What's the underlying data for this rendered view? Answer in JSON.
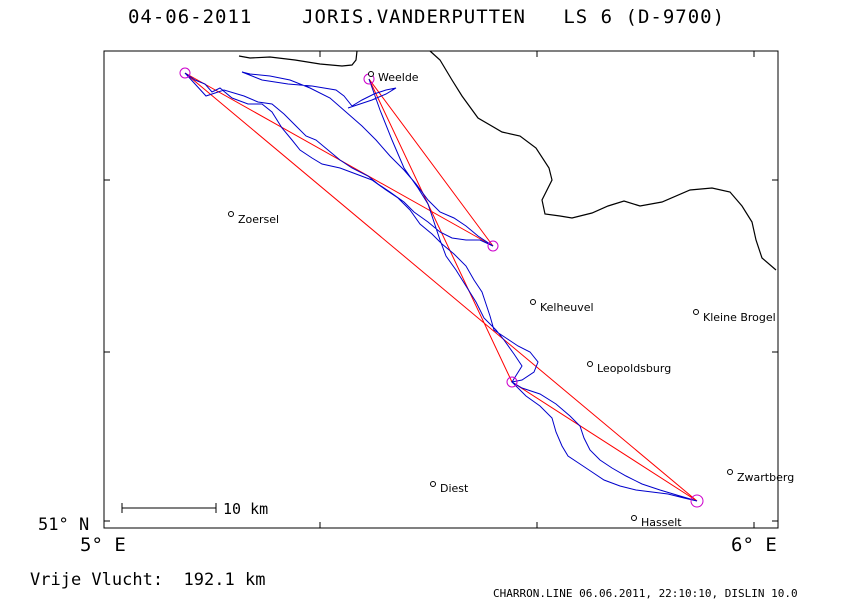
{
  "title": "04-06-2011    JORIS.VANDERPUTTEN   LS 6 (D-9700)",
  "axes": {
    "lat_label": "51° N",
    "lon_left": "5° E",
    "lon_right": "6° E"
  },
  "cities": [
    {
      "name": "Weelde"
    },
    {
      "name": "Zoersel"
    },
    {
      "name": "Kelheuvel"
    },
    {
      "name": "Kleine Brogel"
    },
    {
      "name": "Leopoldsburg"
    },
    {
      "name": "Zwartberg"
    },
    {
      "name": "Diest"
    },
    {
      "name": "Hasselt"
    }
  ],
  "scale_bar": {
    "label": "10 km"
  },
  "distance": {
    "label": "Vrije Vlucht:",
    "value": "192.1 km"
  },
  "footer": "CHARRON.LINE 06.06.2011, 22:10:10, DISLIN 10.0",
  "colors": {
    "track": "#0000cc",
    "task": "#ff0000",
    "turnpoint": "#cc00cc",
    "border": "#000000"
  }
}
